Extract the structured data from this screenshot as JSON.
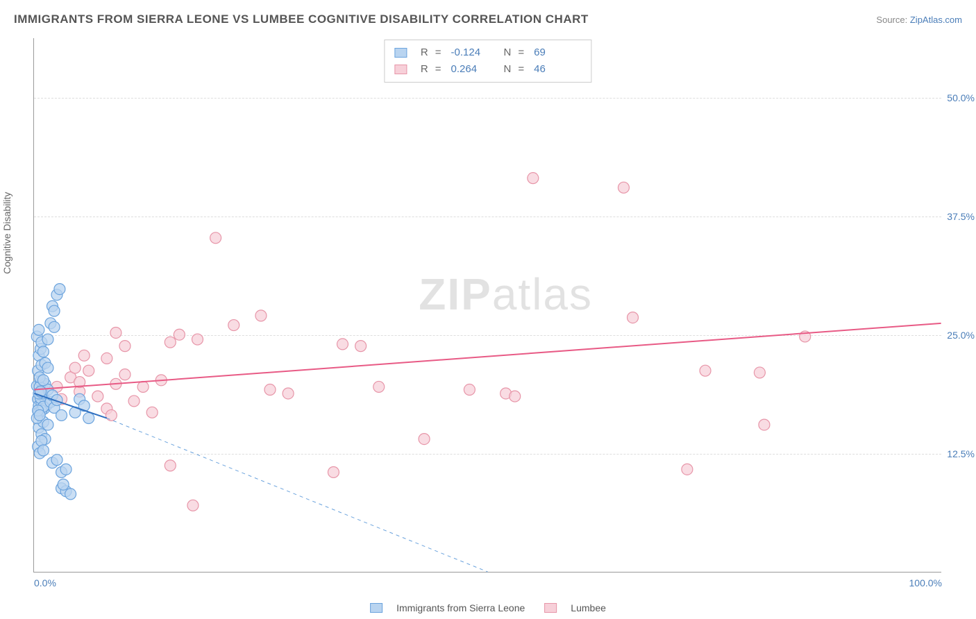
{
  "title": "IMMIGRANTS FROM SIERRA LEONE VS LUMBEE COGNITIVE DISABILITY CORRELATION CHART",
  "source_label": "Source:",
  "source_name": "ZipAtlas.com",
  "ylabel": "Cognitive Disability",
  "watermark_bold": "ZIP",
  "watermark_light": "atlas",
  "chart": {
    "type": "scatter",
    "xlim": [
      0,
      100
    ],
    "ylim": [
      0,
      56.25
    ],
    "yticks": [
      {
        "v": 12.5,
        "label": "12.5%"
      },
      {
        "v": 25.0,
        "label": "25.0%"
      },
      {
        "v": 37.5,
        "label": "37.5%"
      },
      {
        "v": 50.0,
        "label": "50.0%"
      }
    ],
    "xticks": [
      {
        "v": 0,
        "label": "0.0%"
      },
      {
        "v": 100,
        "label": "100.0%"
      }
    ],
    "background_color": "#ffffff",
    "grid_color": "#dddddd",
    "axis_color": "#999999",
    "marker_radius": 8,
    "marker_stroke_width": 1.2,
    "trend_line_width": 2,
    "dash_line_width": 1
  },
  "series_a": {
    "name": "Immigrants from Sierra Leone",
    "fill_color": "#b9d4f0",
    "stroke_color": "#6ba3dd",
    "line_color": "#2e6fc0",
    "R": "-0.124",
    "N": "69",
    "trend": {
      "x1": 0,
      "y1": 18.8,
      "x2": 8,
      "y2": 16.2
    },
    "dash_ext": {
      "x1": 8,
      "y1": 16.2,
      "x2": 50,
      "y2": 0
    },
    "points": [
      [
        0.3,
        19.6
      ],
      [
        0.4,
        18.2
      ],
      [
        0.5,
        17.5
      ],
      [
        0.6,
        18.9
      ],
      [
        0.7,
        20.1
      ],
      [
        0.8,
        17.8
      ],
      [
        0.9,
        19.3
      ],
      [
        1.0,
        18.5
      ],
      [
        1.1,
        17.2
      ],
      [
        1.2,
        19.8
      ],
      [
        1.3,
        18.0
      ],
      [
        1.4,
        17.6
      ],
      [
        0.5,
        16.8
      ],
      [
        0.6,
        19.5
      ],
      [
        0.7,
        18.3
      ],
      [
        0.8,
        17.0
      ],
      [
        0.9,
        18.8
      ],
      [
        1.0,
        17.4
      ],
      [
        1.5,
        19.2
      ],
      [
        1.8,
        17.9
      ],
      [
        2.0,
        18.6
      ],
      [
        2.2,
        17.3
      ],
      [
        2.5,
        18.1
      ],
      [
        3.0,
        16.5
      ],
      [
        0.4,
        21.2
      ],
      [
        0.5,
        22.8
      ],
      [
        0.6,
        20.5
      ],
      [
        0.7,
        23.5
      ],
      [
        0.8,
        21.8
      ],
      [
        1.0,
        20.2
      ],
      [
        1.2,
        22.0
      ],
      [
        1.5,
        21.5
      ],
      [
        0.3,
        24.8
      ],
      [
        0.5,
        25.5
      ],
      [
        0.8,
        24.2
      ],
      [
        2.0,
        28.0
      ],
      [
        2.5,
        29.2
      ],
      [
        2.8,
        29.8
      ],
      [
        2.2,
        27.5
      ],
      [
        0.5,
        15.2
      ],
      [
        0.8,
        14.5
      ],
      [
        1.0,
        15.8
      ],
      [
        1.2,
        14.0
      ],
      [
        1.5,
        15.5
      ],
      [
        0.4,
        13.2
      ],
      [
        0.6,
        12.5
      ],
      [
        0.8,
        13.8
      ],
      [
        1.0,
        12.8
      ],
      [
        2.0,
        11.5
      ],
      [
        2.5,
        11.8
      ],
      [
        3.0,
        10.5
      ],
      [
        3.5,
        10.8
      ],
      [
        3.0,
        8.8
      ],
      [
        3.5,
        8.5
      ],
      [
        4.0,
        8.2
      ],
      [
        3.2,
        9.2
      ],
      [
        0.3,
        16.2
      ],
      [
        0.4,
        17.0
      ],
      [
        0.5,
        18.8
      ],
      [
        0.6,
        16.5
      ],
      [
        0.7,
        19.0
      ],
      [
        4.5,
        16.8
      ],
      [
        5.0,
        18.2
      ],
      [
        5.5,
        17.5
      ],
      [
        6.0,
        16.2
      ],
      [
        1.8,
        26.2
      ],
      [
        2.2,
        25.8
      ],
      [
        1.5,
        24.5
      ],
      [
        1.0,
        23.2
      ]
    ]
  },
  "series_b": {
    "name": "Lumbee",
    "fill_color": "#f7d0d9",
    "stroke_color": "#e795a8",
    "line_color": "#e85a85",
    "R": "0.264",
    "N": "46",
    "trend": {
      "x1": 0,
      "y1": 19.2,
      "x2": 100,
      "y2": 26.2
    },
    "points": [
      [
        2.5,
        19.5
      ],
      [
        3.0,
        18.2
      ],
      [
        4.0,
        20.5
      ],
      [
        5.0,
        19.0
      ],
      [
        6.0,
        21.2
      ],
      [
        7.0,
        18.5
      ],
      [
        8.0,
        17.2
      ],
      [
        8.5,
        16.5
      ],
      [
        9.0,
        19.8
      ],
      [
        10.0,
        20.8
      ],
      [
        11.0,
        18.0
      ],
      [
        12.0,
        19.5
      ],
      [
        8.0,
        22.5
      ],
      [
        9.0,
        25.2
      ],
      [
        10.0,
        23.8
      ],
      [
        5.5,
        22.8
      ],
      [
        4.5,
        21.5
      ],
      [
        5.0,
        20.0
      ],
      [
        13.0,
        16.8
      ],
      [
        14.0,
        20.2
      ],
      [
        15.0,
        24.2
      ],
      [
        16.0,
        25.0
      ],
      [
        18.0,
        24.5
      ],
      [
        20.0,
        35.2
      ],
      [
        22.0,
        26.0
      ],
      [
        25.0,
        27.0
      ],
      [
        26.0,
        19.2
      ],
      [
        28.0,
        18.8
      ],
      [
        34.0,
        24.0
      ],
      [
        36.0,
        23.8
      ],
      [
        38.0,
        19.5
      ],
      [
        33.0,
        10.5
      ],
      [
        17.5,
        7.0
      ],
      [
        15.0,
        11.2
      ],
      [
        43.0,
        14.0
      ],
      [
        48.0,
        19.2
      ],
      [
        52.0,
        18.8
      ],
      [
        53.0,
        18.5
      ],
      [
        55.0,
        41.5
      ],
      [
        65.0,
        40.5
      ],
      [
        66.0,
        26.8
      ],
      [
        72.0,
        10.8
      ],
      [
        74.0,
        21.2
      ],
      [
        80.0,
        21.0
      ],
      [
        80.5,
        15.5
      ],
      [
        85.0,
        24.8
      ]
    ]
  },
  "legend_labels": {
    "R": "R",
    "N": "N",
    "eq": "="
  }
}
